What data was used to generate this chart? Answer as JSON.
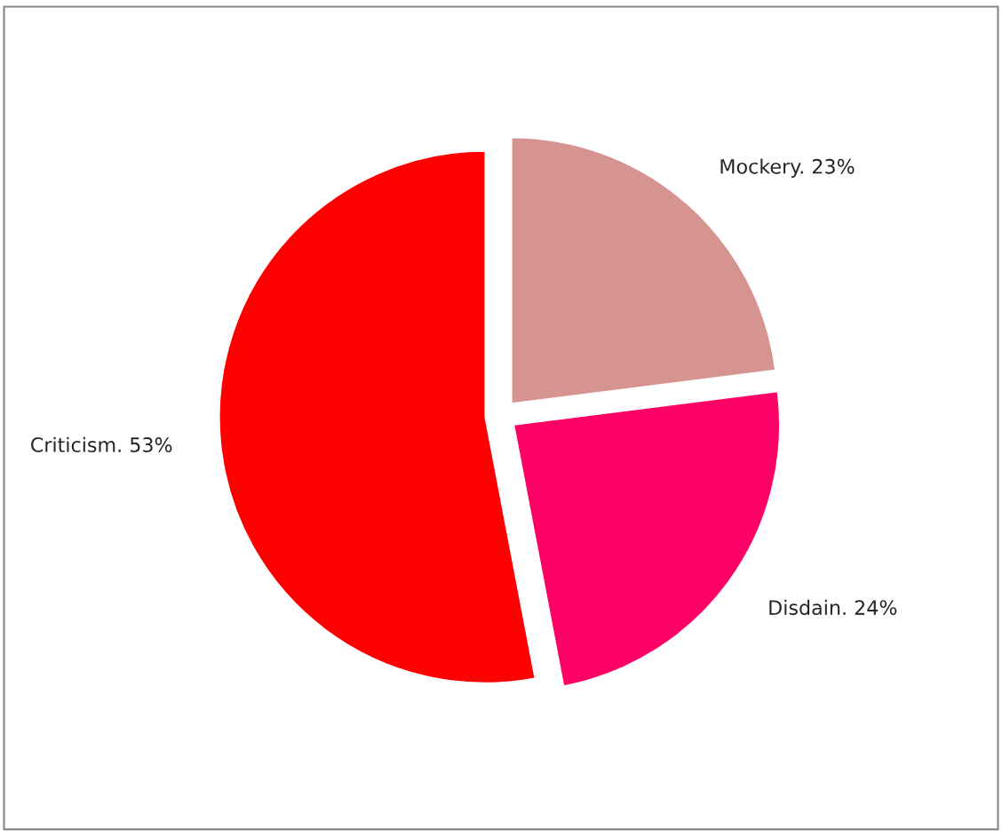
{
  "chart_data": {
    "type": "pie",
    "categories": [
      "Mockery.",
      "Disdain.",
      "Criticism."
    ],
    "values": [
      23,
      24,
      53
    ],
    "value_labels": [
      "23%",
      "24%",
      "53%"
    ],
    "colors": [
      "#d69490",
      "#ff0066",
      "#ff0000"
    ]
  }
}
